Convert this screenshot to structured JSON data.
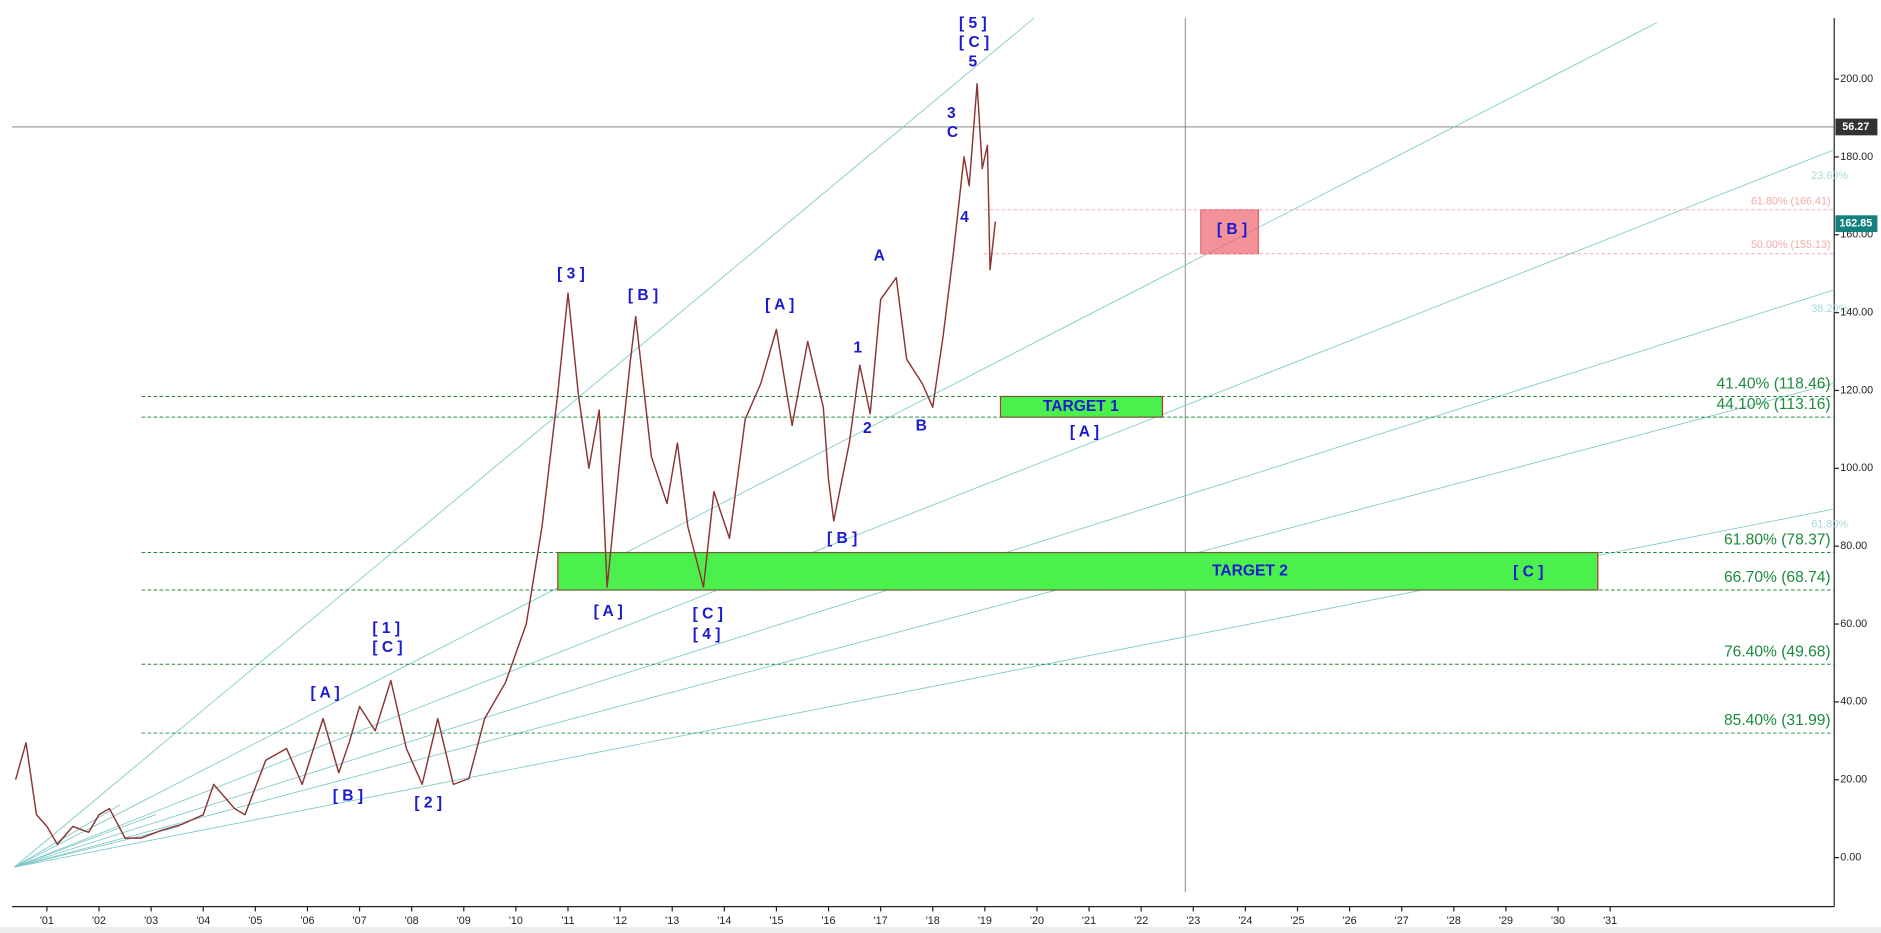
{
  "chart_data": {
    "type": "line",
    "x": [
      2000.4,
      2000.6,
      2000.8,
      2001.0,
      2001.2,
      2001.5,
      2001.8,
      2002.0,
      2002.2,
      2002.5,
      2002.8,
      2003.2,
      2003.6,
      2004.0,
      2004.2,
      2004.6,
      2004.8,
      2005.2,
      2005.6,
      2005.9,
      2006.3,
      2006.6,
      2006.8,
      2007.0,
      2007.3,
      2007.6,
      2007.9,
      2008.2,
      2008.5,
      2008.8,
      2009.1,
      2009.4,
      2009.8,
      2010.2,
      2010.5,
      2010.8,
      2011.0,
      2011.2,
      2011.4,
      2011.6,
      2011.75,
      2012.0,
      2012.2,
      2012.3,
      2012.6,
      2012.9,
      2013.1,
      2013.3,
      2013.6,
      2013.8,
      2014.1,
      2014.4,
      2014.7,
      2015.0,
      2015.3,
      2015.6,
      2015.9,
      2016.0,
      2016.1,
      2016.4,
      2016.6,
      2016.8,
      2017.0,
      2017.3,
      2017.5,
      2017.8,
      2018.0,
      2018.2,
      2018.4,
      2018.6,
      2018.7,
      2018.85,
      2018.95,
      2019.05,
      2019.1,
      2019.2
    ],
    "series": [
      {
        "color": "#8a3434",
        "values": [
          20,
          29.5,
          11,
          8,
          3.4,
          8,
          6.5,
          11,
          12.6,
          5,
          5,
          7,
          8.6,
          11,
          18.8,
          12.6,
          11,
          25,
          28,
          18.8,
          35.7,
          21.8,
          29.5,
          38.8,
          32.6,
          45.5,
          28,
          18.8,
          35.7,
          18.8,
          20.3,
          35.7,
          45,
          60,
          85,
          118.8,
          145,
          118.8,
          100,
          115,
          69.5,
          103,
          128,
          139,
          103,
          91,
          106.5,
          85,
          69.5,
          94,
          82,
          112.6,
          121.8,
          135.7,
          111,
          132.6,
          115.7,
          97,
          86.5,
          106.5,
          126.5,
          114,
          143.4,
          149,
          128,
          121.8,
          115.7,
          134,
          155.7,
          180,
          172.6,
          198.8,
          177,
          183,
          151,
          163.4
        ]
      }
    ],
    "xlim": [
      2000.33,
      2035.3
    ],
    "xticks": [
      {
        "value": 2001,
        "label": "'01"
      },
      {
        "value": 2002,
        "label": "'02"
      },
      {
        "value": 2003,
        "label": "'03"
      },
      {
        "value": 2004,
        "label": "'04"
      },
      {
        "value": 2005,
        "label": "'05"
      },
      {
        "value": 2006,
        "label": "'06"
      },
      {
        "value": 2007,
        "label": "'07"
      },
      {
        "value": 2008,
        "label": "'08"
      },
      {
        "value": 2009,
        "label": "'09"
      },
      {
        "value": 2010,
        "label": "'10"
      },
      {
        "value": 2011,
        "label": "'11"
      },
      {
        "value": 2012,
        "label": "'12"
      },
      {
        "value": 2013,
        "label": "'13"
      },
      {
        "value": 2014,
        "label": "'14"
      },
      {
        "value": 2015,
        "label": "'15"
      },
      {
        "value": 2016,
        "label": "'16"
      },
      {
        "value": 2017,
        "label": "'17"
      },
      {
        "value": 2018,
        "label": "'18"
      },
      {
        "value": 2019,
        "label": "'19"
      },
      {
        "value": 2020,
        "label": "'20"
      },
      {
        "value": 2021,
        "label": "'21"
      },
      {
        "value": 2022,
        "label": "'22"
      },
      {
        "value": 2023,
        "label": "'23"
      },
      {
        "value": 2024,
        "label": "'24"
      },
      {
        "value": 2025,
        "label": "'25"
      },
      {
        "value": 2026,
        "label": "'26"
      },
      {
        "value": 2027,
        "label": "'27"
      },
      {
        "value": 2028,
        "label": "'28"
      },
      {
        "value": 2029,
        "label": "'29"
      },
      {
        "value": 2030,
        "label": "'30"
      },
      {
        "value": 2031,
        "label": "'31"
      }
    ],
    "ylim": [
      -12.6,
      215.7
    ],
    "yticks": [
      {
        "value": 0,
        "label": "0.00"
      },
      {
        "value": 20,
        "label": "20.00"
      },
      {
        "value": 40,
        "label": "40.00"
      },
      {
        "value": 60,
        "label": "60.00"
      },
      {
        "value": 80,
        "label": "80.00"
      },
      {
        "value": 100,
        "label": "100.00"
      },
      {
        "value": 120,
        "label": "120.00"
      },
      {
        "value": 140,
        "label": "140.00"
      },
      {
        "value": 160,
        "label": "160.00"
      },
      {
        "value": 180,
        "label": "180.00"
      },
      {
        "value": 200,
        "label": "200.00"
      }
    ],
    "fib_levels": [
      {
        "label": "41.40% (118.46)",
        "value": 118.46
      },
      {
        "label": "44.10% (113.16)",
        "value": 113.16
      },
      {
        "label": "61.80% (78.37)",
        "value": 78.37
      },
      {
        "label": "66.70% (68.74)",
        "value": 68.74
      },
      {
        "label": "76.40% (49.68)",
        "value": 49.68
      },
      {
        "label": "85.40% (31.99)",
        "value": 31.99
      }
    ],
    "retracements": [
      {
        "label": "61.80% (166.41)",
        "value": 166.41
      },
      {
        "label": "50.00% (155.13)",
        "value": 155.13
      }
    ],
    "fan_labels": [
      "23.60%",
      "38.20%",
      "61.80%"
    ],
    "targets": [
      "TARGET 1",
      "TARGET 2"
    ],
    "wave_labels": [
      "[ 5 ]",
      "[ C ]",
      "5",
      "3",
      "C",
      "4",
      "A",
      "[ 3 ]",
      "[ B ]",
      "[ A ]",
      "1",
      "2",
      "B",
      "[ A ]",
      "[ B ]",
      "[ A ]",
      "[ C ]",
      "[ 4 ]",
      "[ 1 ]",
      "[ C ]",
      "[ A ]",
      "[ B ]",
      "[ 2 ]",
      "[ B ]",
      "[ C ]"
    ],
    "last_price": 162.85,
    "crosshair_price": 56.27
  }
}
